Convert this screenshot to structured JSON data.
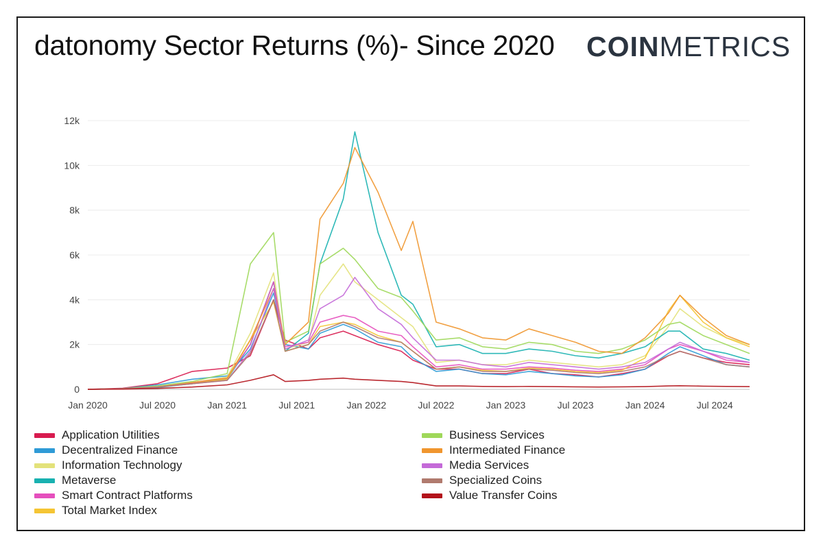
{
  "header": {
    "title": "datonomy Sector Returns (%)- Since 2020",
    "logo_bold": "COIN",
    "logo_light": "METRICS"
  },
  "chart_data": {
    "type": "line",
    "title": "datonomy Sector Returns (%)- Since 2020",
    "xlabel": "",
    "ylabel": "",
    "x_ticks": [
      "Jan 2020",
      "Jul 2020",
      "Jan 2021",
      "Jul 2021",
      "Jan 2022",
      "Jul 2022",
      "Jan 2023",
      "Jul 2023",
      "Jan 2024",
      "Jul 2024"
    ],
    "y_ticks": [
      "0",
      "2k",
      "4k",
      "6k",
      "8k",
      "10k",
      "12k"
    ],
    "ylim": [
      0,
      12000
    ],
    "xlim": [
      "2020-01",
      "2024-10"
    ],
    "grid": true,
    "legend_position": "bottom",
    "x": [
      "2020-01",
      "2020-04",
      "2020-07",
      "2020-10",
      "2021-01",
      "2021-03",
      "2021-05",
      "2021-06",
      "2021-08",
      "2021-09",
      "2021-11",
      "2021-12",
      "2022-02",
      "2022-04",
      "2022-05",
      "2022-07",
      "2022-09",
      "2022-11",
      "2023-01",
      "2023-03",
      "2023-05",
      "2023-07",
      "2023-09",
      "2023-11",
      "2024-01",
      "2024-03",
      "2024-04",
      "2024-06",
      "2024-08",
      "2024-10"
    ],
    "series": [
      {
        "name": "Application Utilities",
        "color": "#d81b4f",
        "values": [
          0,
          50,
          250,
          800,
          950,
          1500,
          4000,
          2200,
          1800,
          2300,
          2600,
          2400,
          2000,
          1700,
          1300,
          900,
          900,
          700,
          700,
          900,
          700,
          650,
          550,
          700,
          900,
          1500,
          1700,
          1400,
          1200,
          1100
        ]
      },
      {
        "name": "Decentralized Finance",
        "color": "#2f9bd6",
        "values": [
          0,
          30,
          200,
          450,
          600,
          1800,
          4300,
          2000,
          1800,
          2500,
          2900,
          2700,
          2100,
          1900,
          1400,
          800,
          900,
          700,
          650,
          800,
          700,
          600,
          550,
          650,
          900,
          1600,
          1900,
          1500,
          1100,
          1000
        ]
      },
      {
        "name": "Information Technology",
        "color": "#e3e27a",
        "values": [
          0,
          20,
          100,
          300,
          550,
          2500,
          5200,
          1800,
          2100,
          4200,
          5600,
          4800,
          4000,
          3200,
          2800,
          1200,
          1300,
          1100,
          1100,
          1300,
          1200,
          1100,
          1000,
          1100,
          1500,
          2800,
          3600,
          2800,
          2300,
          2000
        ]
      },
      {
        "name": "Metaverse",
        "color": "#18b1b0",
        "values": [
          0,
          20,
          80,
          250,
          450,
          2000,
          4800,
          1700,
          2500,
          5600,
          8500,
          11500,
          7000,
          4200,
          3800,
          1900,
          2000,
          1600,
          1600,
          1800,
          1700,
          1500,
          1400,
          1600,
          1900,
          2600,
          2600,
          1800,
          1600,
          1300
        ]
      },
      {
        "name": "Smart Contract Platforms",
        "color": "#e54fbd",
        "values": [
          0,
          20,
          120,
          300,
          500,
          2000,
          4800,
          1900,
          2100,
          3000,
          3300,
          3200,
          2600,
          2400,
          1900,
          1000,
          1100,
          900,
          900,
          1000,
          950,
          850,
          800,
          900,
          1100,
          1800,
          2000,
          1700,
          1300,
          1200
        ]
      },
      {
        "name": "Total Market Index",
        "color": "#f5c534",
        "values": [
          0,
          20,
          100,
          250,
          450,
          2200,
          3900,
          1700,
          2000,
          2800,
          3000,
          2900,
          2400,
          2100,
          1700,
          900,
          1000,
          850,
          800,
          950,
          900,
          800,
          750,
          850,
          1400,
          3500,
          4200,
          3000,
          2300,
          1900
        ]
      },
      {
        "name": "Business Services",
        "color": "#9fd85a",
        "values": [
          0,
          30,
          150,
          350,
          700,
          5600,
          7000,
          2100,
          2600,
          5600,
          6300,
          5800,
          4500,
          4100,
          3500,
          2200,
          2300,
          1900,
          1800,
          2100,
          2000,
          1700,
          1600,
          1800,
          2200,
          2900,
          3000,
          2400,
          2000,
          1600
        ]
      },
      {
        "name": "Intermediated Finance",
        "color": "#f0962e",
        "values": [
          0,
          20,
          100,
          300,
          500,
          2200,
          4500,
          2000,
          3000,
          7600,
          9200,
          10800,
          8800,
          6200,
          7500,
          3000,
          2700,
          2300,
          2200,
          2700,
          2400,
          2100,
          1700,
          1600,
          2300,
          3400,
          4200,
          3200,
          2400,
          2000
        ]
      },
      {
        "name": "Media Services",
        "color": "#c46ad8",
        "values": [
          0,
          20,
          100,
          250,
          400,
          1700,
          4500,
          1800,
          2200,
          3600,
          4200,
          5000,
          3600,
          2900,
          2300,
          1300,
          1300,
          1100,
          1000,
          1200,
          1100,
          1000,
          900,
          1000,
          1200,
          1800,
          2100,
          1700,
          1400,
          1200
        ]
      },
      {
        "name": "Specialized Coins",
        "color": "#b07a6e",
        "values": [
          0,
          20,
          100,
          250,
          400,
          1600,
          4000,
          1700,
          2000,
          2600,
          3000,
          2800,
          2300,
          2100,
          1700,
          900,
          1000,
          800,
          800,
          900,
          850,
          750,
          700,
          800,
          1000,
          1500,
          1700,
          1400,
          1100,
          1000
        ]
      },
      {
        "name": "Value Transfer Coins",
        "color": "#b3121a",
        "values": [
          0,
          10,
          40,
          100,
          200,
          400,
          650,
          350,
          400,
          450,
          500,
          450,
          400,
          350,
          300,
          150,
          150,
          130,
          120,
          130,
          120,
          110,
          100,
          110,
          120,
          150,
          160,
          140,
          130,
          120
        ]
      }
    ]
  },
  "legend": {
    "items": [
      {
        "label": "Application Utilities",
        "color": "#d81b4f"
      },
      {
        "label": "Decentralized Finance",
        "color": "#2f9bd6"
      },
      {
        "label": "Information Technology",
        "color": "#e3e27a"
      },
      {
        "label": "Metaverse",
        "color": "#18b1b0"
      },
      {
        "label": "Smart Contract Platforms",
        "color": "#e54fbd"
      },
      {
        "label": "Total Market Index",
        "color": "#f5c534"
      },
      {
        "label": "Business Services",
        "color": "#9fd85a"
      },
      {
        "label": "Intermediated Finance",
        "color": "#f0962e"
      },
      {
        "label": "Media Services",
        "color": "#c46ad8"
      },
      {
        "label": "Specialized Coins",
        "color": "#b07a6e"
      },
      {
        "label": "Value Transfer Coins",
        "color": "#b3121a"
      }
    ]
  }
}
